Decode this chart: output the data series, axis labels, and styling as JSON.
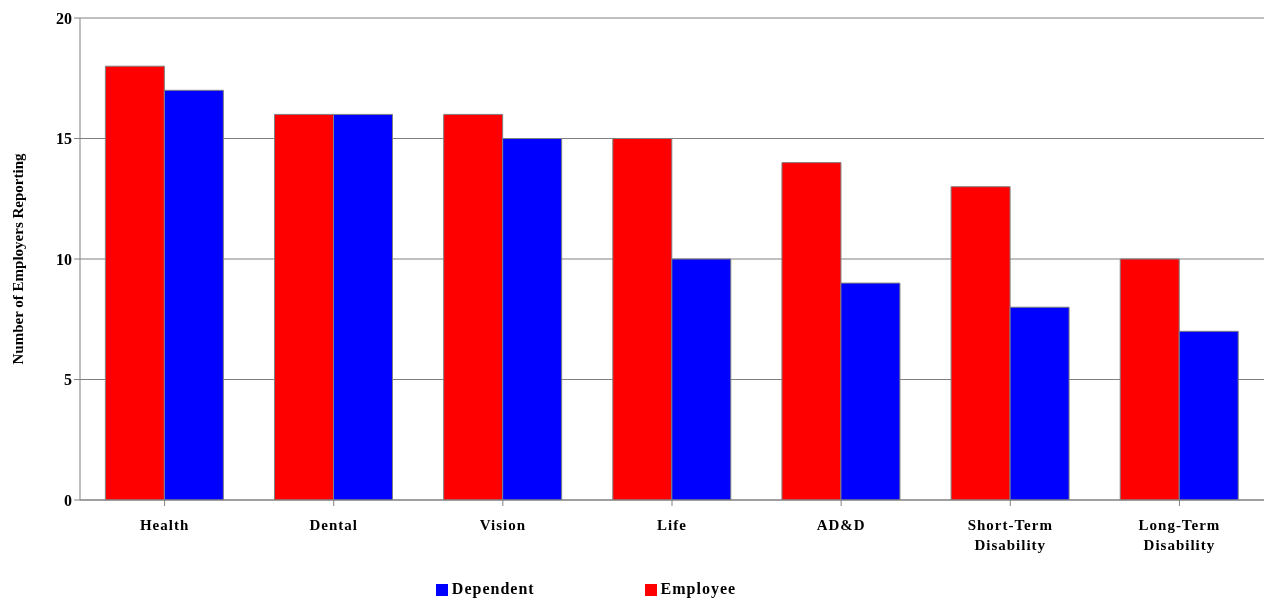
{
  "chart_data": {
    "type": "bar",
    "ylabel": "Number of Employers Reporting",
    "categories": [
      "Health",
      "Dental",
      "Vision",
      "Life",
      "AD&D",
      "Short-Term Disability",
      "Long-Term Disability"
    ],
    "series": [
      {
        "name": "Employee",
        "color": "#ff0000",
        "values": [
          18,
          16,
          16,
          15,
          14,
          13,
          10
        ]
      },
      {
        "name": "Dependent",
        "color": "#0000ff",
        "values": [
          17,
          16,
          15,
          10,
          9,
          8,
          7
        ]
      }
    ],
    "ylim": [
      0,
      20
    ],
    "yticks": [
      0,
      5,
      10,
      15,
      20
    ],
    "grid": "y",
    "legend": "bottom"
  }
}
